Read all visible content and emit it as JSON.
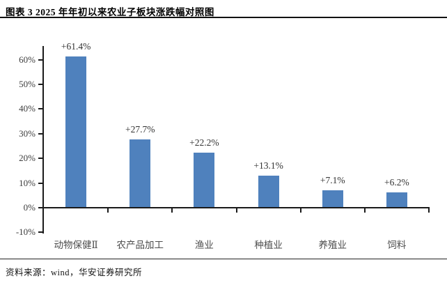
{
  "header": {
    "title": "图表 3 2025 年年初以来农业子板块涨跌幅对照图"
  },
  "footer": {
    "source": "资料来源：wind，华安证券研究所"
  },
  "chart_data": {
    "type": "bar",
    "title": "2025 年年初以来农业子板块涨跌幅对照图",
    "categories": [
      "动物保健Ⅱ",
      "农产品加工",
      "渔业",
      "种植业",
      "养殖业",
      "饲料"
    ],
    "values": [
      61.4,
      27.7,
      22.2,
      13.1,
      7.1,
      6.2
    ],
    "data_labels": [
      "+61.4%",
      "+27.7%",
      "+22.2%",
      "+13.1%",
      "+7.1%",
      "+6.2%"
    ],
    "xlabel": "",
    "ylabel": "",
    "ylim": [
      -10,
      65
    ],
    "ytick_step": 10,
    "ytick_labels": [
      "-10%",
      "0%",
      "10%",
      "20%",
      "30%",
      "40%",
      "50%",
      "60%"
    ],
    "grid": false,
    "legend_position": "none",
    "bar_color": "#4F81BD",
    "axis_color": "#1a1a1a"
  }
}
